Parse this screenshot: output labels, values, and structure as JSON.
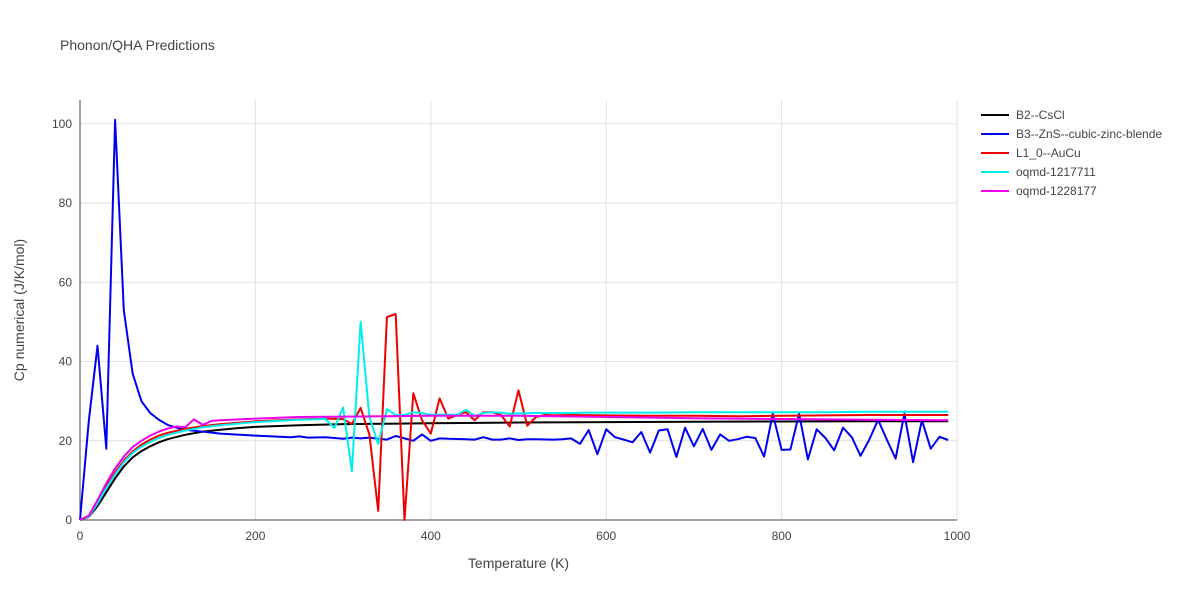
{
  "chart_data": {
    "type": "line",
    "title": "Phonon/QHA Predictions",
    "xlabel": "Temperature (K)",
    "ylabel": "Cp numerical (J/K/mol)",
    "xlim": [
      0,
      1000
    ],
    "ylim": [
      0,
      106
    ],
    "xticks": [
      0,
      200,
      400,
      600,
      800,
      1000
    ],
    "yticks": [
      0,
      20,
      40,
      60,
      80,
      100
    ],
    "grid": true,
    "legend_position": "top-right",
    "series": [
      {
        "name": "B2--CsCl",
        "color": "#000000",
        "x": [
          0,
          10,
          20,
          30,
          40,
          50,
          60,
          70,
          80,
          90,
          100,
          120,
          140,
          160,
          180,
          200,
          250,
          300,
          350,
          400,
          500,
          600,
          700,
          800,
          900,
          990
        ],
        "y": [
          0,
          0.8,
          3.5,
          7,
          10.5,
          13.5,
          15.8,
          17.4,
          18.6,
          19.6,
          20.4,
          21.5,
          22.3,
          22.8,
          23.2,
          23.5,
          23.9,
          24.2,
          24.3,
          24.4,
          24.6,
          24.7,
          24.8,
          24.85,
          24.9,
          24.9
        ]
      },
      {
        "name": "B3--ZnS--cubic-zinc-blende",
        "color": "#0000ee",
        "x": [
          0,
          10,
          20,
          30,
          40,
          50,
          60,
          70,
          80,
          90,
          100,
          110,
          120,
          130,
          140,
          160,
          200,
          240,
          250,
          260,
          280,
          300,
          310,
          320,
          330,
          340,
          350,
          360,
          370,
          380,
          390,
          400,
          410,
          420,
          440,
          450,
          460,
          470,
          480,
          490,
          500,
          510,
          520,
          540,
          550,
          560,
          570,
          580,
          590,
          600,
          610,
          620,
          630,
          640,
          650,
          660,
          670,
          680,
          690,
          700,
          710,
          720,
          730,
          740,
          750,
          760,
          770,
          780,
          790,
          800,
          810,
          820,
          830,
          840,
          850,
          860,
          870,
          880,
          890,
          900,
          910,
          920,
          930,
          940,
          950,
          960,
          970,
          980,
          990
        ],
        "y": [
          0,
          25,
          44,
          18,
          101,
          53,
          37,
          30,
          27,
          25.3,
          24,
          23.3,
          22.8,
          22.5,
          22.3,
          21.8,
          21.3,
          20.9,
          21.1,
          20.8,
          20.9,
          20.5,
          20.8,
          20.6,
          20.8,
          20.5,
          20.3,
          21.2,
          20.6,
          20.0,
          21.6,
          20.0,
          20.6,
          20.5,
          20.4,
          20.3,
          20.9,
          20.3,
          20.3,
          20.6,
          20.2,
          20.4,
          20.4,
          20.3,
          20.4,
          20.6,
          19.2,
          22.7,
          16.6,
          22.9,
          20.9,
          20.3,
          19.6,
          22.2,
          17.0,
          22.6,
          22.9,
          15.9,
          23.3,
          18.6,
          23.0,
          17.7,
          21.6,
          20.0,
          20.4,
          21.0,
          20.7,
          16.0,
          26.8,
          17.7,
          17.8,
          26.8,
          15.3,
          22.9,
          20.7,
          17.6,
          23.3,
          20.9,
          16.2,
          20.3,
          25.3,
          20.3,
          15.5,
          26.8,
          14.6,
          25.2,
          18.0,
          21.0,
          20.2
        ]
      },
      {
        "name": "L1_0--AuCu",
        "color": "#ee0000",
        "x": [
          0,
          10,
          20,
          30,
          40,
          50,
          60,
          70,
          80,
          90,
          100,
          120,
          140,
          160,
          200,
          250,
          280,
          300,
          310,
          320,
          330,
          340,
          350,
          360,
          370,
          380,
          390,
          400,
          410,
          420,
          430,
          440,
          450,
          460,
          470,
          480,
          490,
          500,
          510,
          520,
          530,
          540,
          560,
          600,
          650,
          700,
          750,
          800,
          850,
          900,
          950,
          990
        ],
        "y": [
          0,
          0.9,
          4.5,
          8.5,
          12,
          15,
          17.3,
          19,
          20.3,
          21.3,
          22,
          23,
          23.7,
          24.2,
          24.9,
          25.4,
          25.6,
          25.5,
          24.2,
          28.3,
          21.6,
          2.3,
          51.2,
          52.0,
          0,
          32.0,
          25.2,
          21.8,
          30.7,
          25.6,
          26.5,
          27.2,
          25.2,
          27.2,
          27.2,
          26.5,
          23.6,
          32.7,
          23.8,
          26.0,
          26.5,
          26.4,
          26.5,
          26.4,
          26.3,
          26.3,
          26.2,
          26.3,
          26.4,
          26.5,
          26.5,
          26.5
        ]
      },
      {
        "name": "oqmd-1217711",
        "color": "#00eeee",
        "x": [
          0,
          10,
          20,
          30,
          40,
          50,
          60,
          70,
          80,
          90,
          100,
          120,
          140,
          160,
          200,
          250,
          280,
          290,
          300,
          310,
          320,
          330,
          340,
          350,
          360,
          370,
          380,
          390,
          400,
          410,
          420,
          430,
          440,
          450,
          460,
          470,
          480,
          490,
          500,
          520,
          540,
          560,
          580,
          600,
          650,
          700,
          750,
          800,
          850,
          900,
          950,
          990
        ],
        "y": [
          0,
          0.9,
          4.2,
          8,
          11.5,
          14.6,
          16.9,
          18.5,
          19.7,
          20.7,
          21.5,
          22.6,
          23.4,
          23.9,
          24.7,
          25.3,
          25.5,
          23.2,
          28.4,
          12.3,
          50.0,
          26.0,
          19.2,
          28.0,
          26.5,
          26.5,
          27.2,
          27.0,
          26.5,
          26.6,
          26.6,
          26.5,
          27.8,
          26.2,
          27.0,
          27.2,
          27.1,
          26.8,
          26.9,
          27.0,
          27.0,
          27.0,
          27.1,
          27.1,
          27.1,
          27.2,
          27.2,
          27.2,
          27.2,
          27.3,
          27.3,
          27.3
        ]
      },
      {
        "name": "oqmd-1228177",
        "color": "#ee00ee",
        "x": [
          0,
          10,
          20,
          30,
          40,
          50,
          60,
          70,
          80,
          90,
          100,
          110,
          120,
          130,
          140,
          150,
          160,
          200,
          250,
          300,
          350,
          400,
          500,
          600,
          700,
          800,
          900,
          990
        ],
        "y": [
          0,
          1.1,
          5,
          9.3,
          13,
          16,
          18.4,
          20,
          21.3,
          22.3,
          23.1,
          23.6,
          23.4,
          25.4,
          24.0,
          25.0,
          25.2,
          25.6,
          26.0,
          26.1,
          26.2,
          26.3,
          26.3,
          26.0,
          25.7,
          25.5,
          25.3,
          25.2
        ]
      }
    ]
  }
}
